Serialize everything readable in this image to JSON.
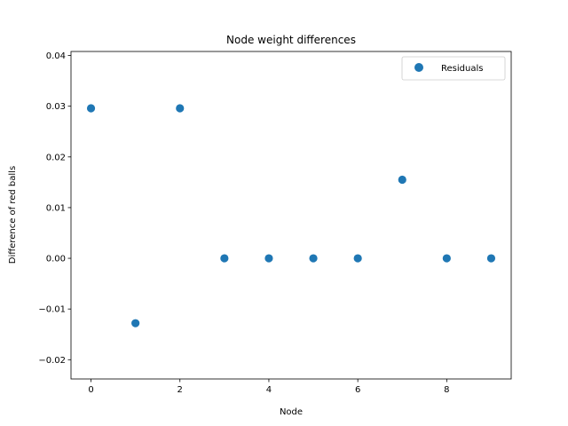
{
  "chart_data": {
    "type": "scatter",
    "title": "Node weight differences",
    "xlabel": "Node",
    "ylabel": "Difference of red balls",
    "xlim": [
      -0.45,
      9.45
    ],
    "ylim": [
      -0.0238,
      0.0408
    ],
    "xticks": [
      0,
      2,
      4,
      6,
      8
    ],
    "xtick_labels": [
      "0",
      "2",
      "4",
      "6",
      "8"
    ],
    "yticks": [
      -0.02,
      -0.01,
      0.0,
      0.01,
      0.02,
      0.03,
      0.04
    ],
    "ytick_labels": [
      "−0.02",
      "−0.01",
      "0.00",
      "0.01",
      "0.02",
      "0.03",
      "0.04"
    ],
    "grid": false,
    "legend_position": "upper right",
    "color": "#1f77b4",
    "series": [
      {
        "name": "Residuals",
        "x": [
          0,
          1,
          2,
          3,
          4,
          5,
          6,
          7,
          8,
          9
        ],
        "y": [
          0.0296,
          -0.0128,
          0.0296,
          0.0,
          0.0,
          0.0,
          0.0,
          0.0155,
          0.0,
          0.0
        ]
      }
    ]
  }
}
